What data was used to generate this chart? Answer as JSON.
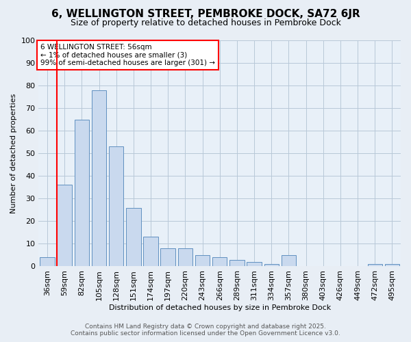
{
  "title": "6, WELLINGTON STREET, PEMBROKE DOCK, SA72 6JR",
  "subtitle": "Size of property relative to detached houses in Pembroke Dock",
  "xlabel": "Distribution of detached houses by size in Pembroke Dock",
  "ylabel": "Number of detached properties",
  "bar_labels": [
    "36sqm",
    "59sqm",
    "82sqm",
    "105sqm",
    "128sqm",
    "151sqm",
    "174sqm",
    "197sqm",
    "220sqm",
    "243sqm",
    "266sqm",
    "289sqm",
    "311sqm",
    "334sqm",
    "357sqm",
    "380sqm",
    "403sqm",
    "426sqm",
    "449sqm",
    "472sqm",
    "495sqm"
  ],
  "bar_values": [
    4,
    36,
    65,
    78,
    53,
    26,
    13,
    8,
    8,
    5,
    4,
    3,
    2,
    1,
    5,
    0,
    0,
    0,
    0,
    1,
    1
  ],
  "bar_color": "#c9d9ee",
  "bar_edge_color": "#6090c0",
  "red_line_index": 1,
  "annotation_title": "6 WELLINGTON STREET: 56sqm",
  "annotation_line1": "← 1% of detached houses are smaller (3)",
  "annotation_line2": "99% of semi-detached houses are larger (301) →",
  "ylim": [
    0,
    100
  ],
  "yticks": [
    0,
    10,
    20,
    30,
    40,
    50,
    60,
    70,
    80,
    90,
    100
  ],
  "footer1": "Contains HM Land Registry data © Crown copyright and database right 2025.",
  "footer2": "Contains public sector information licensed under the Open Government Licence v3.0.",
  "bg_color": "#e8eef5",
  "plot_bg_color": "#e8f0f8",
  "grid_color": "#b8c8d8",
  "title_fontsize": 11,
  "subtitle_fontsize": 9,
  "axis_label_fontsize": 8,
  "tick_fontsize": 8,
  "annotation_fontsize": 7.5,
  "footer_fontsize": 6.5
}
